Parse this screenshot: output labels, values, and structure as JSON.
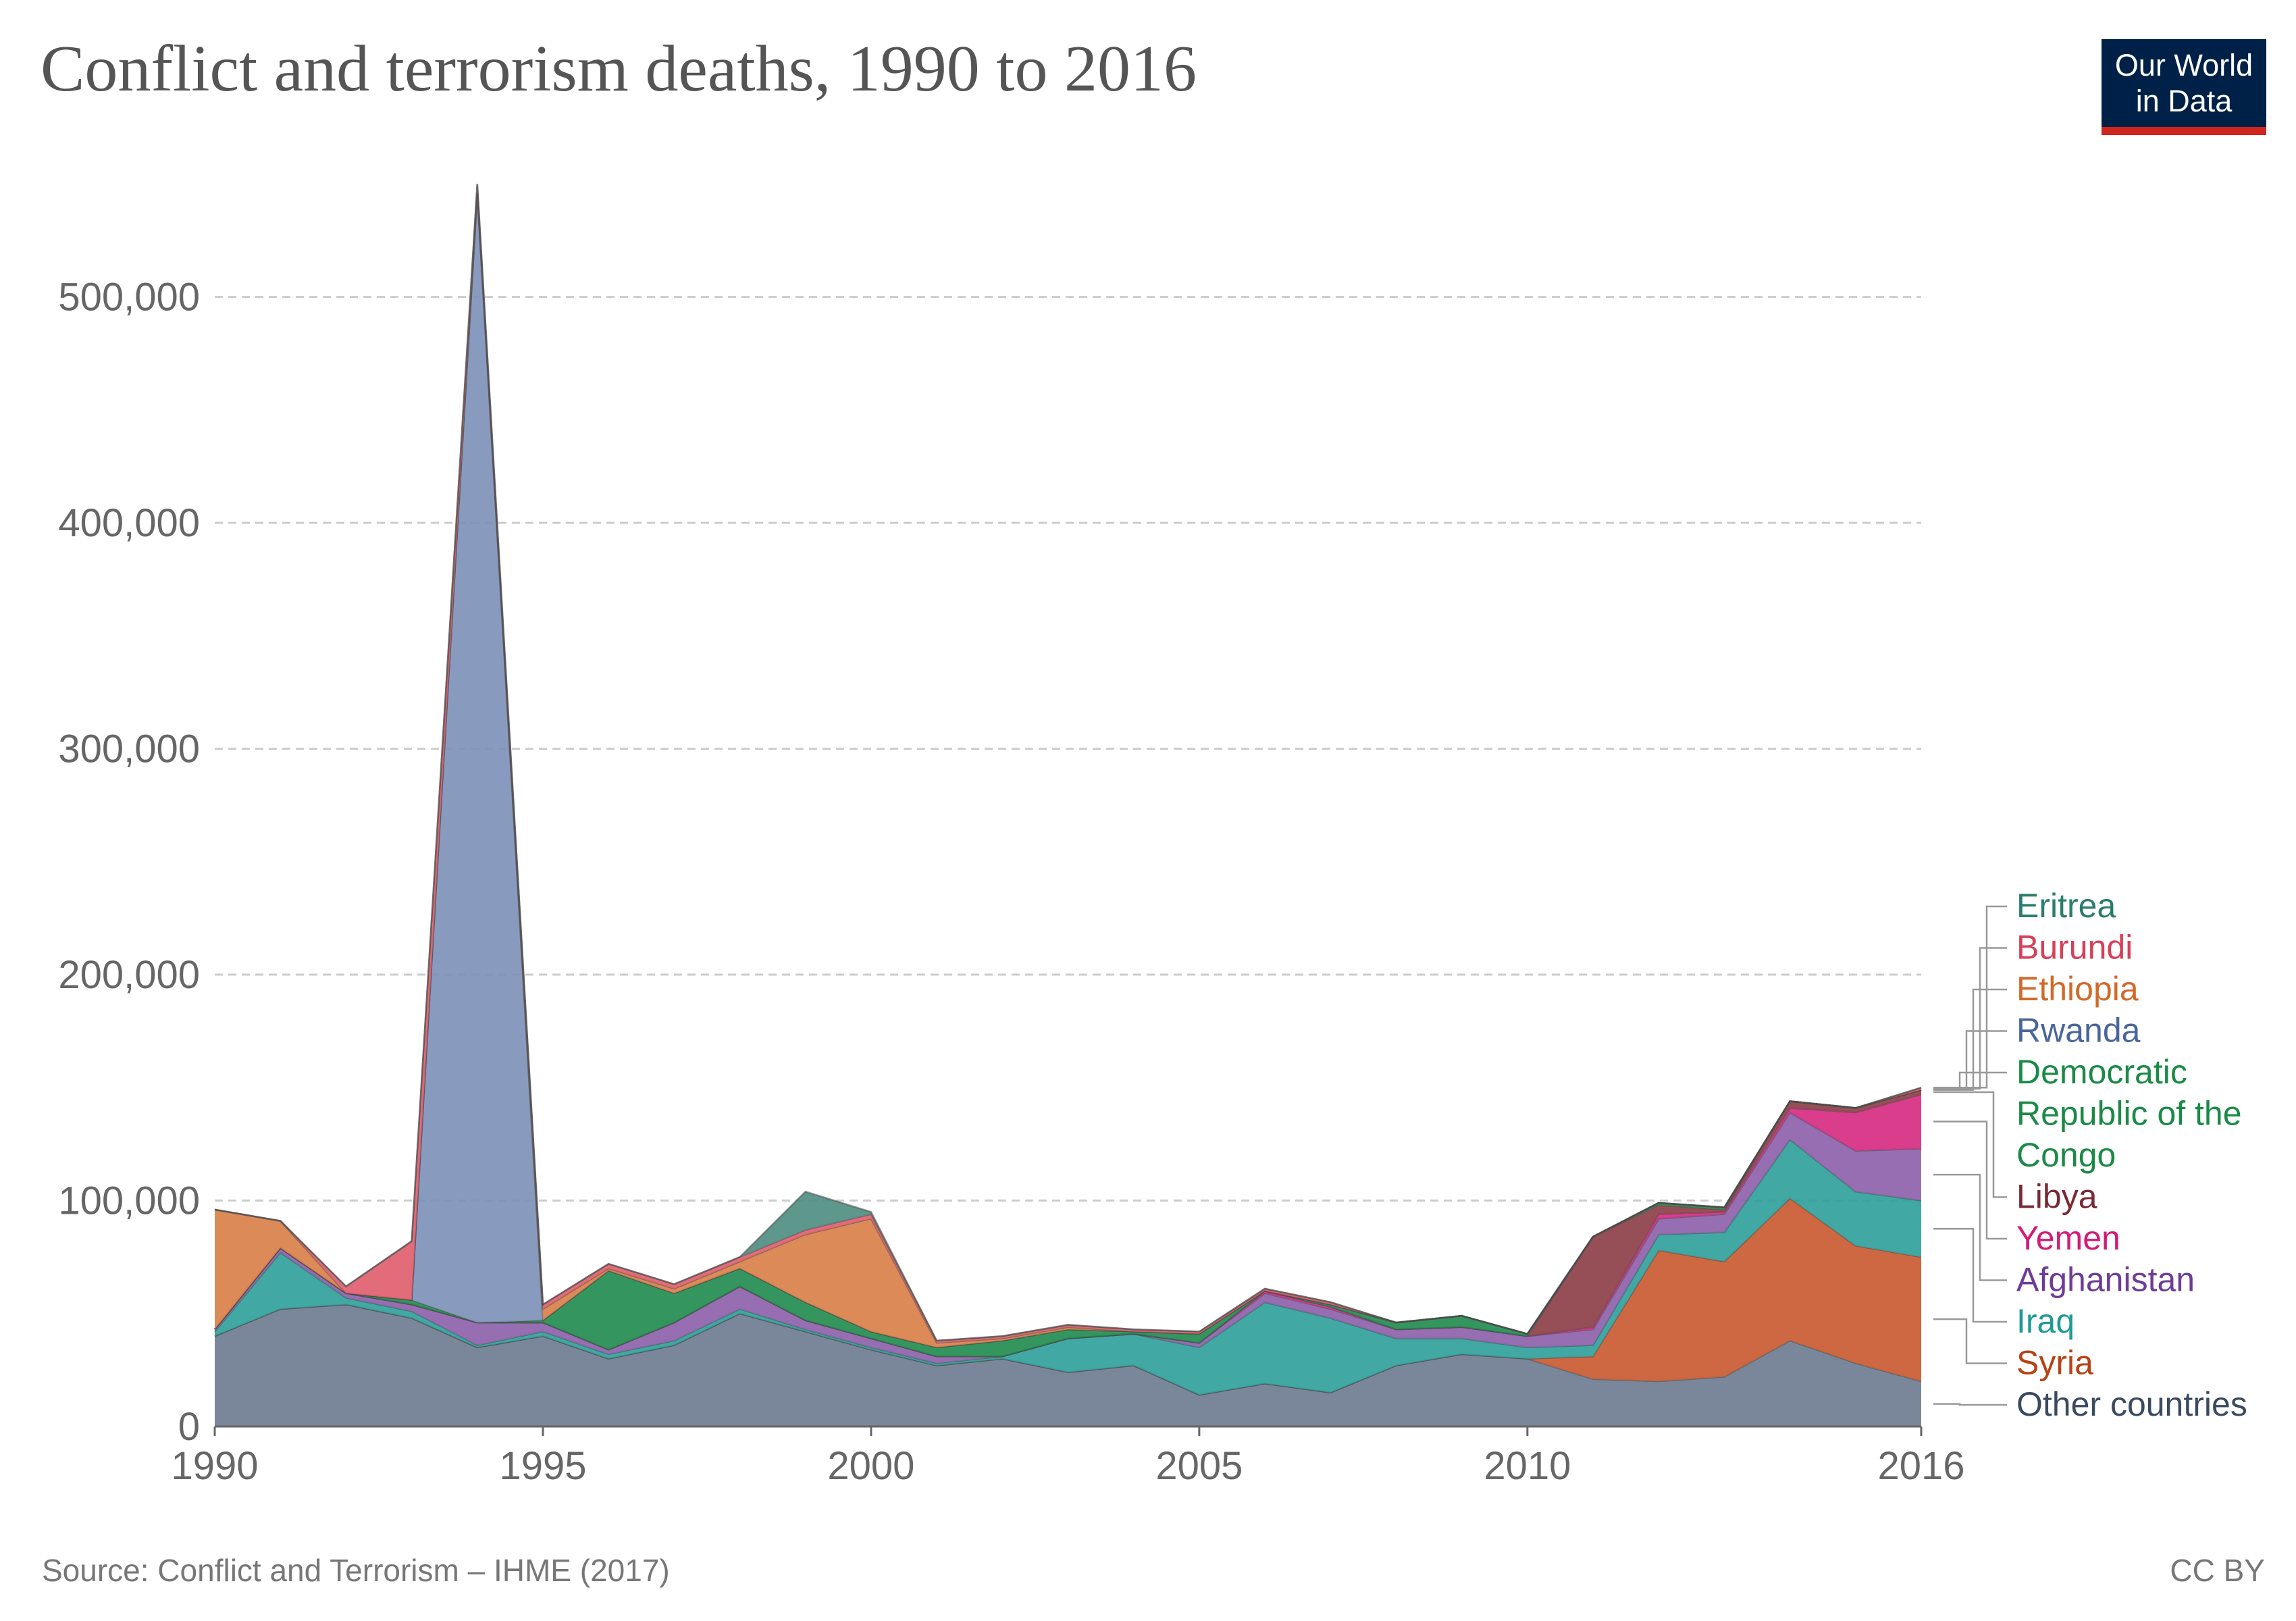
{
  "title": "Conflict and terrorism deaths, 1990 to 2016",
  "logo": {
    "line1": "Our World",
    "line2": "in Data",
    "bg": "#002147",
    "accent": "#ce261e"
  },
  "source": "Source: Conflict and Terrorism – IHME (2017)",
  "license": "CC BY",
  "chart_data": {
    "type": "area",
    "stacked": true,
    "title": "Conflict and terrorism deaths, 1990 to 2016",
    "xlabel": "",
    "ylabel": "",
    "xlim": [
      1990,
      2016
    ],
    "ylim": [
      0,
      550000
    ],
    "x_ticks": [
      "1990",
      "1995",
      "2000",
      "2005",
      "2010",
      "2016"
    ],
    "y_ticks": [
      {
        "value": 0,
        "label": "0"
      },
      {
        "value": 100000,
        "label": "100,000"
      },
      {
        "value": 200000,
        "label": "200,000"
      },
      {
        "value": 300000,
        "label": "300,000"
      },
      {
        "value": 400000,
        "label": "400,000"
      },
      {
        "value": 500000,
        "label": "500,000"
      }
    ],
    "grid": "horizontal dashed",
    "legend_position": "right, labels at series end",
    "x": [
      1990,
      1991,
      1992,
      1993,
      1994,
      1995,
      1996,
      1997,
      1998,
      1999,
      2000,
      2001,
      2002,
      2003,
      2004,
      2005,
      2006,
      2007,
      2008,
      2009,
      2010,
      2011,
      2012,
      2013,
      2014,
      2015,
      2016
    ],
    "series": [
      {
        "name": "Other countries",
        "color": "#6b7a8f",
        "values": [
          40000,
          52000,
          54000,
          48000,
          35000,
          40000,
          30000,
          36000,
          50000,
          42000,
          34000,
          27000,
          30000,
          24000,
          27000,
          14000,
          19000,
          15000,
          27000,
          32000,
          30000,
          21000,
          20000,
          22000,
          38000,
          28000,
          20000
        ]
      },
      {
        "name": "Syria",
        "color": "#c9582e",
        "values": [
          0,
          0,
          0,
          0,
          0,
          0,
          0,
          0,
          0,
          0,
          0,
          0,
          0,
          0,
          0,
          0,
          0,
          0,
          0,
          0,
          0,
          10000,
          58000,
          51000,
          63000,
          52000,
          55000
        ]
      },
      {
        "name": "Iraq",
        "color": "#2c9e9a",
        "values": [
          2000,
          25000,
          3000,
          3000,
          1000,
          2000,
          2000,
          2000,
          2000,
          1000,
          1000,
          1000,
          1000,
          15000,
          14000,
          21000,
          36000,
          33000,
          12000,
          7000,
          5000,
          5000,
          7000,
          13000,
          26000,
          24000,
          25000
        ]
      },
      {
        "name": "Afghanistan",
        "color": "#8b5ea8",
        "values": [
          1000,
          2000,
          2000,
          3000,
          10000,
          4000,
          2000,
          8000,
          10000,
          4000,
          4000,
          3000,
          0,
          0,
          0,
          2000,
          4000,
          4000,
          4000,
          5000,
          5000,
          7000,
          7000,
          8000,
          12000,
          18000,
          23000
        ]
      },
      {
        "name": "Yemen",
        "color": "#d6287f",
        "values": [
          0,
          0,
          0,
          0,
          0,
          0,
          0,
          0,
          0,
          0,
          0,
          0,
          0,
          0,
          0,
          0,
          1000,
          1000,
          0,
          0,
          0,
          1000,
          2000,
          1000,
          2000,
          17000,
          24000
        ]
      },
      {
        "name": "Libya",
        "color": "#8c3c45",
        "values": [
          0,
          0,
          0,
          0,
          0,
          0,
          0,
          0,
          0,
          0,
          0,
          0,
          0,
          0,
          0,
          0,
          0,
          0,
          0,
          0,
          0,
          40000,
          4000,
          1000,
          3000,
          2000,
          2000
        ]
      },
      {
        "name": "Democratic Republic of the Congo",
        "color": "#1f8a4c",
        "values": [
          0,
          0,
          0,
          2000,
          0,
          1000,
          35000,
          13000,
          8000,
          8000,
          3000,
          4000,
          7000,
          4000,
          1000,
          4000,
          0,
          1000,
          3000,
          5000,
          1000,
          0,
          1000,
          1000,
          0,
          0,
          0
        ]
      },
      {
        "name": "Rwanda",
        "color": "#7b90b8",
        "values": [
          0,
          0,
          0,
          0,
          500000,
          0,
          0,
          0,
          0,
          0,
          0,
          0,
          0,
          0,
          0,
          0,
          0,
          0,
          0,
          0,
          0,
          0,
          0,
          0,
          0,
          0,
          0
        ]
      },
      {
        "name": "Ethiopia",
        "color": "#d97d47",
        "values": [
          53000,
          12000,
          0,
          0,
          0,
          5000,
          1000,
          2000,
          3000,
          30000,
          50000,
          2000,
          1000,
          1000,
          0,
          0,
          0,
          0,
          0,
          0,
          0,
          0,
          0,
          0,
          0,
          0,
          0
        ]
      },
      {
        "name": "Burundi",
        "color": "#e05c6d",
        "values": [
          0,
          0,
          3000,
          26000,
          4000,
          2000,
          2000,
          2000,
          2000,
          2000,
          2000,
          1000,
          1000,
          1000,
          1000,
          1000,
          1000,
          1000,
          0,
          0,
          0,
          0,
          0,
          0,
          0,
          0,
          1000
        ]
      },
      {
        "name": "Eritrea",
        "color": "#4c8c7e",
        "values": [
          0,
          0,
          0,
          0,
          0,
          0,
          0,
          0,
          0,
          17000,
          1000,
          0,
          0,
          0,
          0,
          0,
          0,
          0,
          0,
          0,
          0,
          0,
          0,
          0,
          0,
          0,
          0
        ]
      }
    ],
    "legend": [
      {
        "label": "Eritrea",
        "color": "#2a7d6d"
      },
      {
        "label": "Burundi",
        "color": "#d64058"
      },
      {
        "label": "Ethiopia",
        "color": "#d2692a"
      },
      {
        "label": "Rwanda",
        "color": "#4a659a"
      },
      {
        "label": "Democratic",
        "color": "#1b8a46"
      },
      {
        "label": "Republic of the",
        "color": "#1b8a46"
      },
      {
        "label": "Congo",
        "color": "#1b8a46"
      },
      {
        "label": "Libya",
        "color": "#7a2a35"
      },
      {
        "label": "Yemen",
        "color": "#d41a76"
      },
      {
        "label": "Afghanistan",
        "color": "#6e3c96"
      },
      {
        "label": "Iraq",
        "color": "#1e9a96"
      },
      {
        "label": "Syria",
        "color": "#b84216"
      },
      {
        "label": "Other countries",
        "color": "#3a4a60"
      }
    ]
  }
}
